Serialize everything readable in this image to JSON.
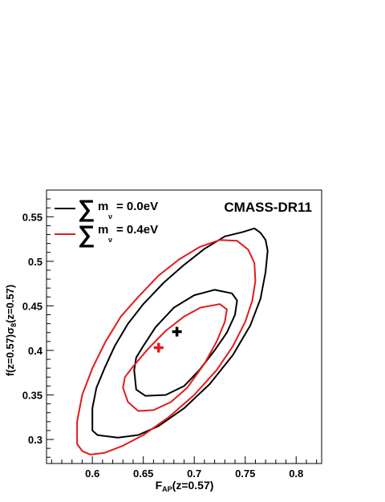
{
  "chart_data": {
    "type": "contour",
    "title": "CMASS-DR11",
    "xlabel": {
      "main": "F",
      "sub": "AP",
      "rest": "(z=0.57)"
    },
    "ylabel": {
      "part1": "f(z=0.57)σ",
      "sub": "8",
      "part2": "(z=0.57)"
    },
    "xlim": [
      0.555,
      0.825
    ],
    "ylim": [
      0.273,
      0.58
    ],
    "x_ticks": [
      0.6,
      0.65,
      0.7,
      0.75,
      0.8
    ],
    "x_tick_labels": [
      "0.6",
      "0.65",
      "0.7",
      "0.75",
      "0.8"
    ],
    "y_ticks": [
      0.3,
      0.35,
      0.4,
      0.45,
      0.5,
      0.55
    ],
    "y_tick_labels": [
      "0.3",
      "0.35",
      "0.4",
      "0.45",
      "0.5",
      "0.55"
    ],
    "grid": false,
    "legend_position": "top-left",
    "series": [
      {
        "name_prefix": "m",
        "name_sub": "ν",
        "name_value": "= 0.0eV",
        "color": "#000000",
        "best_fit": {
          "x": 0.683,
          "y": 0.421
        },
        "contours": [
          {
            "level": "1-sigma",
            "points": [
              [
                0.641,
                0.378
              ],
              [
                0.643,
                0.356
              ],
              [
                0.652,
                0.349
              ],
              [
                0.672,
                0.35
              ],
              [
                0.69,
                0.36
              ],
              [
                0.705,
                0.378
              ],
              [
                0.72,
                0.4
              ],
              [
                0.732,
                0.42
              ],
              [
                0.74,
                0.44
              ],
              [
                0.742,
                0.456
              ],
              [
                0.737,
                0.464
              ],
              [
                0.72,
                0.468
              ],
              [
                0.7,
                0.462
              ],
              [
                0.68,
                0.448
              ],
              [
                0.662,
                0.426
              ],
              [
                0.65,
                0.405
              ],
              [
                0.643,
                0.392
              ],
              [
                0.641,
                0.378
              ]
            ]
          },
          {
            "level": "2-sigma",
            "points": [
              [
                0.6,
                0.31
              ],
              [
                0.605,
                0.305
              ],
              [
                0.625,
                0.302
              ],
              [
                0.645,
                0.305
              ],
              [
                0.665,
                0.315
              ],
              [
                0.69,
                0.335
              ],
              [
                0.715,
                0.362
              ],
              [
                0.738,
                0.395
              ],
              [
                0.755,
                0.428
              ],
              [
                0.765,
                0.458
              ],
              [
                0.77,
                0.488
              ],
              [
                0.772,
                0.512
              ],
              [
                0.77,
                0.524
              ],
              [
                0.765,
                0.532
              ],
              [
                0.759,
                0.537
              ],
              [
                0.748,
                0.533
              ],
              [
                0.73,
                0.528
              ],
              [
                0.71,
                0.514
              ],
              [
                0.69,
                0.496
              ],
              [
                0.67,
                0.476
              ],
              [
                0.65,
                0.452
              ],
              [
                0.635,
                0.43
              ],
              [
                0.622,
                0.405
              ],
              [
                0.612,
                0.38
              ],
              [
                0.604,
                0.358
              ],
              [
                0.6,
                0.335
              ],
              [
                0.6,
                0.31
              ]
            ]
          }
        ]
      },
      {
        "name_prefix": "m",
        "name_sub": "ν",
        "name_value": "= 0.4eV",
        "color": "#e41a1c",
        "best_fit": {
          "x": 0.665,
          "y": 0.403
        },
        "contours": [
          {
            "level": "1-sigma",
            "points": [
              [
                0.63,
                0.358
              ],
              [
                0.635,
                0.342
              ],
              [
                0.645,
                0.332
              ],
              [
                0.66,
                0.333
              ],
              [
                0.677,
                0.342
              ],
              [
                0.693,
                0.358
              ],
              [
                0.71,
                0.385
              ],
              [
                0.722,
                0.41
              ],
              [
                0.73,
                0.432
              ],
              [
                0.732,
                0.446
              ],
              [
                0.725,
                0.452
              ],
              [
                0.706,
                0.448
              ],
              [
                0.69,
                0.438
              ],
              [
                0.672,
                0.422
              ],
              [
                0.655,
                0.402
              ],
              [
                0.64,
                0.382
              ],
              [
                0.632,
                0.37
              ],
              [
                0.63,
                0.358
              ]
            ]
          },
          {
            "level": "2-sigma",
            "points": [
              [
                0.585,
                0.295
              ],
              [
                0.59,
                0.287
              ],
              [
                0.598,
                0.283
              ],
              [
                0.612,
                0.285
              ],
              [
                0.63,
                0.293
              ],
              [
                0.65,
                0.305
              ],
              [
                0.675,
                0.325
              ],
              [
                0.7,
                0.35
              ],
              [
                0.722,
                0.378
              ],
              [
                0.738,
                0.405
              ],
              [
                0.75,
                0.432
              ],
              [
                0.757,
                0.456
              ],
              [
                0.76,
                0.478
              ],
              [
                0.759,
                0.498
              ],
              [
                0.753,
                0.513
              ],
              [
                0.742,
                0.523
              ],
              [
                0.725,
                0.524
              ],
              [
                0.705,
                0.516
              ],
              [
                0.685,
                0.502
              ],
              [
                0.665,
                0.484
              ],
              [
                0.645,
                0.46
              ],
              [
                0.628,
                0.438
              ],
              [
                0.613,
                0.41
              ],
              [
                0.6,
                0.38
              ],
              [
                0.59,
                0.35
              ],
              [
                0.585,
                0.32
              ],
              [
                0.585,
                0.295
              ]
            ]
          }
        ]
      }
    ]
  }
}
